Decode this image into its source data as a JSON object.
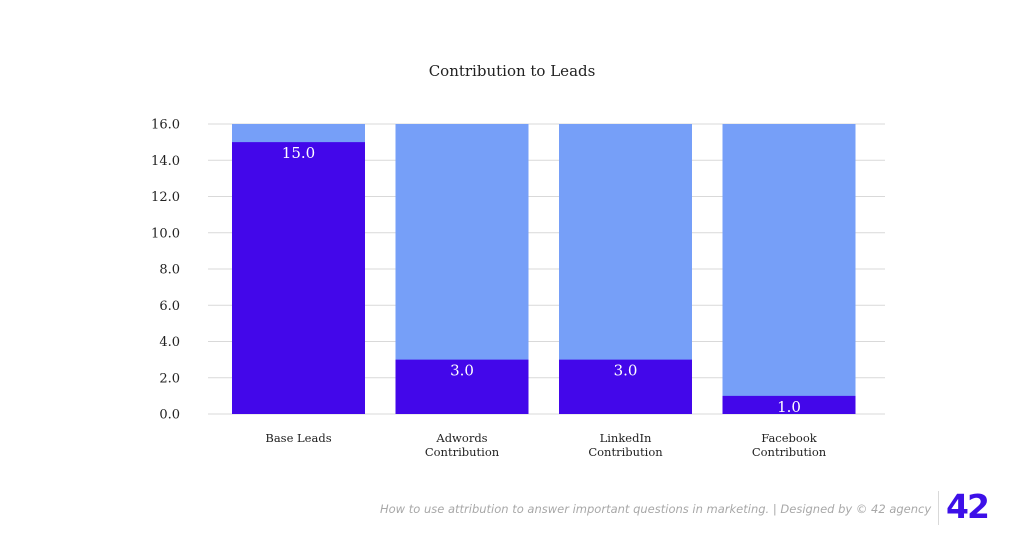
{
  "chart_data": {
    "type": "bar",
    "stacked": true,
    "title": "Contribution to Leads",
    "categories": [
      [
        "Base Leads"
      ],
      [
        "Adwords",
        "Contribution"
      ],
      [
        "LinkedIn",
        "Contribution"
      ],
      [
        "Facebook",
        "Contribution"
      ]
    ],
    "values": [
      15.0,
      3.0,
      3.0,
      1.0
    ],
    "value_labels": [
      "15.0",
      "3.0",
      "3.0",
      "1.0"
    ],
    "y_ticks": [
      "0.0",
      "2.0",
      "4.0",
      "6.0",
      "8.0",
      "10.0",
      "12.0",
      "14.0",
      "16.0"
    ],
    "ylim": [
      0,
      16
    ],
    "grid": true,
    "legend": "none",
    "colors": {
      "value_bar": "#4307ea",
      "remainder_bar": "#769ff8",
      "grid": "#d9d9d9"
    }
  },
  "footer": {
    "credit": "How to use attribution to answer important questions in marketing. | Designed by © 42 agency",
    "logo": "42"
  }
}
